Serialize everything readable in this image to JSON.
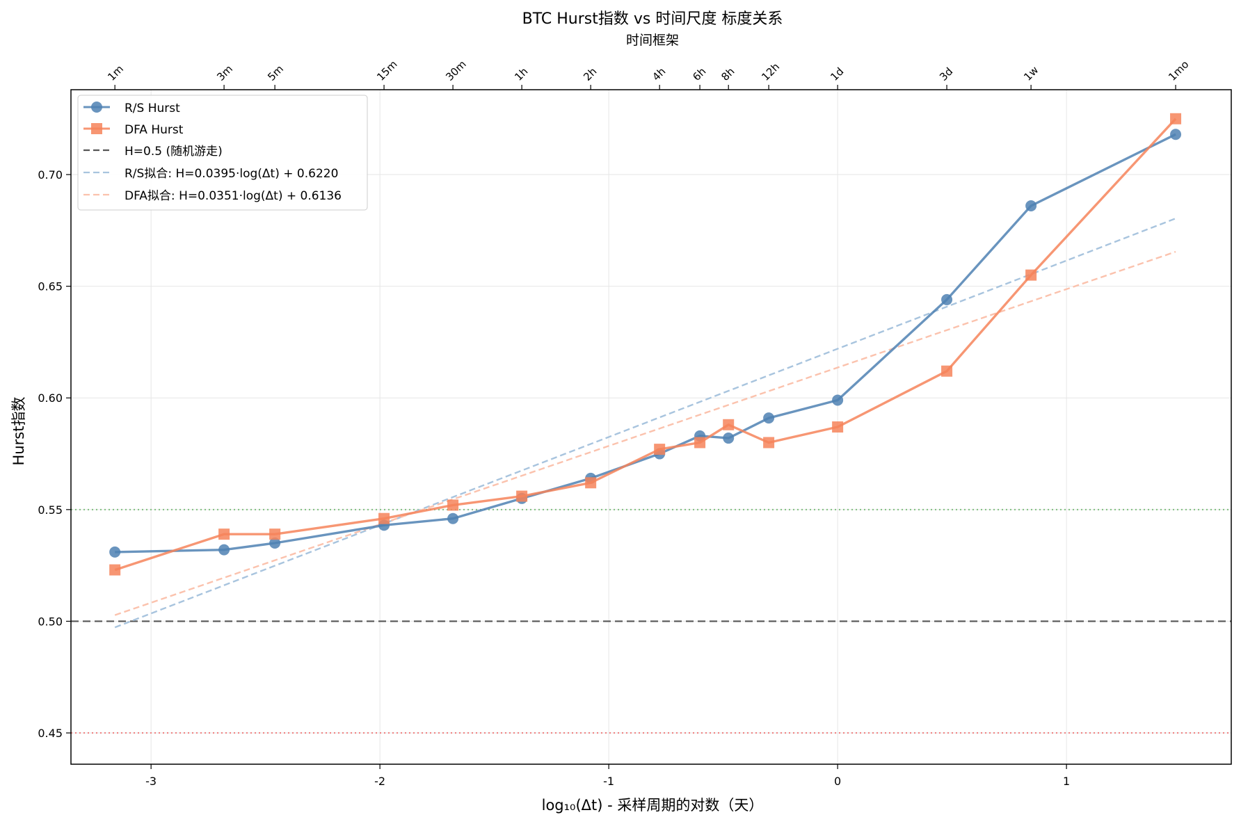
{
  "chart_data": {
    "type": "line",
    "title": "BTC Hurst指数 vs 时间尺度 标度关系",
    "xlabel": "log₁₀(Δt) - 采样周期的对数（天）",
    "ylabel": "Hurst指数",
    "top_xlabel": "时间框架",
    "xlim": [
      -3.35,
      1.72
    ],
    "ylim": [
      0.436,
      0.738
    ],
    "grid": true,
    "legend_position": "top-left",
    "x_ticks": [
      {
        "value": -3,
        "label": "-3"
      },
      {
        "value": -2,
        "label": "-2"
      },
      {
        "value": -1,
        "label": "-1"
      },
      {
        "value": 0,
        "label": "0"
      },
      {
        "value": 1,
        "label": "1"
      }
    ],
    "y_ticks": [
      {
        "value": 0.45,
        "label": "0.45"
      },
      {
        "value": 0.5,
        "label": "0.50"
      },
      {
        "value": 0.55,
        "label": "0.55"
      },
      {
        "value": 0.6,
        "label": "0.60"
      },
      {
        "value": 0.65,
        "label": "0.65"
      },
      {
        "value": 0.7,
        "label": "0.70"
      }
    ],
    "timeframes": [
      {
        "label": "1m",
        "x": -3.158
      },
      {
        "label": "3m",
        "x": -2.681
      },
      {
        "label": "5m",
        "x": -2.459
      },
      {
        "label": "15m",
        "x": -1.982
      },
      {
        "label": "30m",
        "x": -1.681
      },
      {
        "label": "1h",
        "x": -1.38
      },
      {
        "label": "2h",
        "x": -1.079
      },
      {
        "label": "4h",
        "x": -0.778
      },
      {
        "label": "6h",
        "x": -0.602
      },
      {
        "label": "8h",
        "x": -0.477
      },
      {
        "label": "12h",
        "x": -0.301
      },
      {
        "label": "1d",
        "x": 0.0
      },
      {
        "label": "3d",
        "x": 0.477
      },
      {
        "label": "1w",
        "x": 0.845
      },
      {
        "label": "1mo",
        "x": 1.477
      }
    ],
    "series": [
      {
        "name": "R/S Hurst",
        "color": "#4f81b3",
        "marker": "circle",
        "values": [
          0.531,
          0.532,
          0.535,
          0.543,
          0.546,
          0.555,
          0.564,
          0.575,
          0.583,
          0.582,
          0.591,
          0.599,
          0.644,
          0.686,
          0.718
        ]
      },
      {
        "name": "DFA Hurst",
        "color": "#f6845a",
        "marker": "square",
        "values": [
          0.523,
          0.539,
          0.539,
          0.546,
          0.552,
          0.556,
          0.562,
          0.577,
          0.58,
          0.588,
          0.58,
          0.587,
          0.612,
          0.655,
          0.725
        ]
      }
    ],
    "fits": [
      {
        "name": "R/S拟合: H=0.0395·log(Δt) + 0.6220",
        "slope": 0.0395,
        "intercept": 0.622,
        "color": "#a8c4de"
      },
      {
        "name": "DFA拟合: H=0.0351·log(Δt) + 0.6136",
        "slope": 0.0351,
        "intercept": 0.6136,
        "color": "#fbc2ad"
      }
    ],
    "reference_lines": [
      {
        "name": "H=0.5 (随机游走)",
        "value": 0.5,
        "color": "#555555",
        "style": "dashed",
        "in_legend": true
      },
      {
        "value": 0.55,
        "color": "#7fbf7f",
        "style": "dotted",
        "in_legend": false
      },
      {
        "value": 0.45,
        "color": "#f08080",
        "style": "dotted",
        "in_legend": false
      }
    ]
  }
}
